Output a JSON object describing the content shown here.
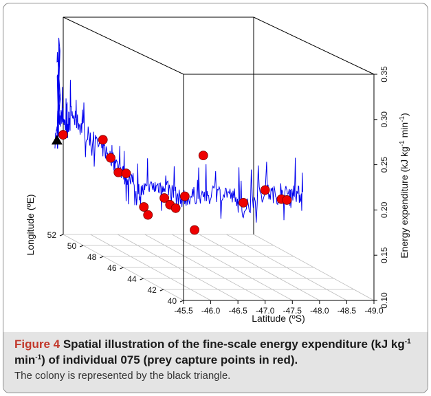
{
  "figure": {
    "label": "Figure 4",
    "caption_title_a": " Spatial illustration of the fine-scale energy expenditure (kJ kg",
    "sup1": "-1",
    "caption_title_b": " min",
    "sup2": "-1",
    "caption_title_c": ") of individual 075 (prey capture points in red).",
    "caption_note": "The colony is represented by the black triangle."
  },
  "colors": {
    "track": "#0000ee",
    "prey": "#ee0000",
    "colony": "#000000",
    "axes": "#000000",
    "grid": "#bdbdbd",
    "caption_label": "#c2372a",
    "caption_band": "#e4e4e4"
  },
  "chart_data": {
    "type": "scatter",
    "projection": "3d",
    "axes": {
      "x": {
        "label": "Latitude (ºS)",
        "ticks": [
          "-45.5",
          "-46.0",
          "-46.5",
          "-47.0",
          "-47.5",
          "-48.0",
          "-48.5",
          "-49.0"
        ],
        "range": [
          -45.5,
          -49.0
        ]
      },
      "y": {
        "label": "Longitude (ºE)",
        "ticks": [
          "40",
          "42",
          "44",
          "46",
          "48",
          "50",
          "52"
        ],
        "range": [
          40,
          52
        ]
      },
      "z": {
        "label": "Energy expenditure (kJ kg",
        "label_sup1": "-1",
        "label_mid": " min",
        "label_sup2": "-1",
        "label_end": ")",
        "ticks": [
          "0.10",
          "0.15",
          "0.20",
          "0.25",
          "0.30",
          "0.35"
        ],
        "range": [
          0.1,
          0.35
        ]
      }
    },
    "grid": true,
    "series": [
      {
        "role": "colony",
        "marker": "triangle",
        "points": [
          {
            "lat": -45.2,
            "lon": 51.0,
            "ee": 0.21
          }
        ]
      },
      {
        "role": "prey_captures",
        "marker": "circle",
        "points": [
          {
            "lat": -45.35,
            "lon": 51.2,
            "ee": 0.215
          },
          {
            "lat": -45.4,
            "lon": 47.5,
            "ee": 0.232
          },
          {
            "lat": -45.45,
            "lon": 47.0,
            "ee": 0.215
          },
          {
            "lat": -45.5,
            "lon": 46.5,
            "ee": 0.202
          },
          {
            "lat": -45.55,
            "lon": 46.0,
            "ee": 0.204
          },
          {
            "lat": -45.6,
            "lon": 44.5,
            "ee": 0.176
          },
          {
            "lat": -45.62,
            "lon": 44.2,
            "ee": 0.169
          },
          {
            "lat": -45.7,
            "lon": 43.0,
            "ee": 0.195
          },
          {
            "lat": -45.73,
            "lon": 42.6,
            "ee": 0.19
          },
          {
            "lat": -45.78,
            "lon": 42.3,
            "ee": 0.188
          },
          {
            "lat": -45.8,
            "lon": 41.5,
            "ee": 0.206
          },
          {
            "lat": -45.85,
            "lon": 40.8,
            "ee": 0.173
          },
          {
            "lat": -45.9,
            "lon": 40.2,
            "ee": 0.259
          },
          {
            "lat": -46.6,
            "lon": 40.0,
            "ee": 0.208
          },
          {
            "lat": -47.0,
            "lon": 40.0,
            "ee": 0.222
          },
          {
            "lat": -47.3,
            "lon": 40.0,
            "ee": 0.212
          },
          {
            "lat": -47.4,
            "lon": 40.0,
            "ee": 0.211
          }
        ]
      }
    ]
  }
}
